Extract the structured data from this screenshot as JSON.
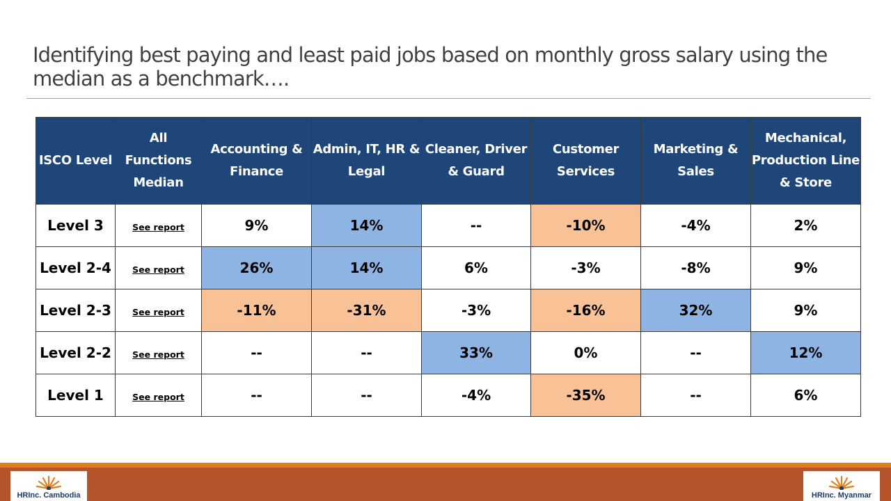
{
  "slide": {
    "title": "Identifying best paying and least paid jobs based on monthly gross salary using the median as a benchmark…."
  },
  "table": {
    "headers": [
      "ISCO Level",
      "All Functions Median",
      "Accounting & Finance",
      "Admin, IT, HR & Legal",
      "Cleaner, Driver & Guard",
      "Customer Services",
      "Marketing & Sales",
      "Mechanical, Production Line & Store"
    ],
    "rows": [
      {
        "level": "Level 3",
        "link": "See report",
        "values": [
          "9%",
          "14%",
          "--",
          "-10%",
          "-4%",
          "2%"
        ]
      },
      {
        "level": "Level 2-4",
        "link": "See report",
        "values": [
          "26%",
          "14%",
          "6%",
          "-3%",
          "-8%",
          "9%"
        ]
      },
      {
        "level": "Level 2-3",
        "link": "See report",
        "values": [
          "-11%",
          "-31%",
          "-3%",
          "-16%",
          "32%",
          "9%"
        ]
      },
      {
        "level": "Level 2-2",
        "link": "See report",
        "values": [
          "--",
          "--",
          "33%",
          "0%",
          "--",
          "12%"
        ]
      },
      {
        "level": "Level 1",
        "link": "See report",
        "values": [
          "--",
          "--",
          "-4%",
          "-35%",
          "--",
          "6%"
        ]
      }
    ],
    "highlight_colors": {
      "best_paid": "#8eb4e3",
      "least_paid": "#f8c296",
      "negative_text": "#ff0000",
      "header_bg": "#1f4679"
    }
  },
  "footer": {
    "logo_left": "HRInc. Cambodia",
    "logo_right": "HRInc. Myanmar",
    "colors": {
      "thin_bar": "#e07f1f",
      "thick_bar": "#b5532a"
    }
  }
}
